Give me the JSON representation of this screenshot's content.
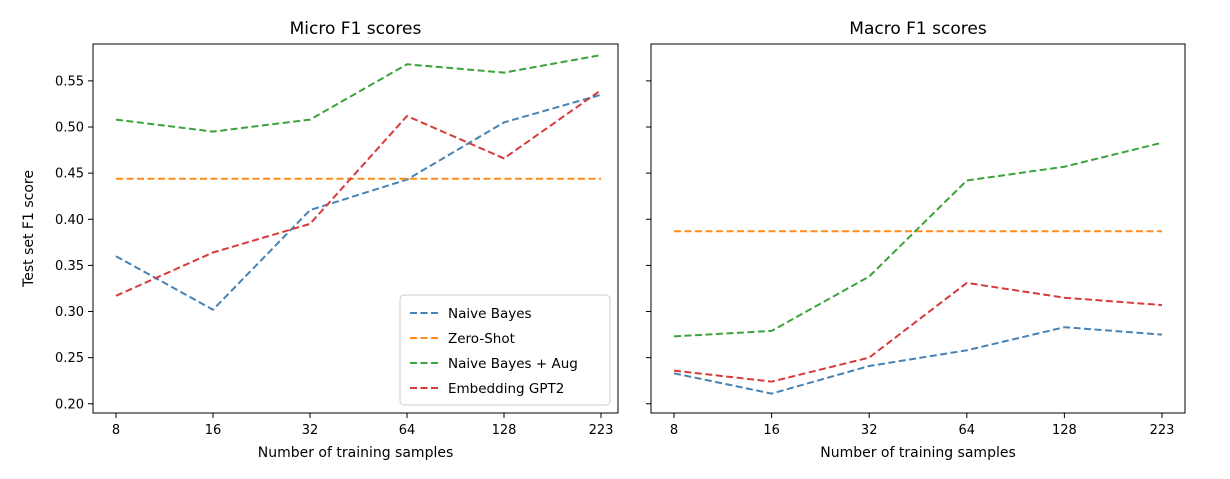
{
  "chart_data": [
    {
      "type": "line",
      "title": "Micro F1 scores",
      "xlabel": "Number of training samples",
      "ylabel": "Test set F1 score",
      "categories": [
        "8",
        "16",
        "32",
        "64",
        "128",
        "223"
      ],
      "ylim": [
        0.19,
        0.59
      ],
      "yticks": [
        "0.20",
        "0.25",
        "0.30",
        "0.35",
        "0.40",
        "0.45",
        "0.50",
        "0.55"
      ],
      "ytick_values": [
        0.2,
        0.25,
        0.3,
        0.35,
        0.4,
        0.45,
        0.5,
        0.55
      ],
      "grid": false,
      "legend": "lower-right",
      "series": [
        {
          "name": "Naive Bayes",
          "color": "#4682b4",
          "values": [
            0.36,
            0.302,
            0.41,
            0.443,
            0.505,
            0.535
          ]
        },
        {
          "name": "Zero-Shot",
          "color": "#ff8c1a",
          "values": [
            0.444,
            0.444,
            0.444,
            0.444,
            0.444,
            0.444
          ]
        },
        {
          "name": "Naive Bayes + Aug",
          "color": "#3ca23c",
          "values": [
            0.508,
            0.495,
            0.508,
            0.568,
            0.559,
            0.578
          ]
        },
        {
          "name": "Embedding GPT2",
          "color": "#d63b3b",
          "values": [
            0.317,
            0.364,
            0.395,
            0.512,
            0.466,
            0.54
          ]
        }
      ]
    },
    {
      "type": "line",
      "title": "Macro F1 scores",
      "xlabel": "Number of training samples",
      "ylabel": "",
      "categories": [
        "8",
        "16",
        "32",
        "64",
        "128",
        "223"
      ],
      "ylim": [
        0.19,
        0.59
      ],
      "yticks": [],
      "ytick_values": [
        0.2,
        0.25,
        0.3,
        0.35,
        0.4,
        0.45,
        0.5,
        0.55
      ],
      "grid": false,
      "legend": "none",
      "series": [
        {
          "color": "#4682b4",
          "values": [
            0.233,
            0.211,
            0.241,
            0.258,
            0.283,
            0.275
          ]
        },
        {
          "color": "#ff8c1a",
          "values": [
            0.387,
            0.387,
            0.387,
            0.387,
            0.387,
            0.387
          ]
        },
        {
          "color": "#3ca23c",
          "values": [
            0.273,
            0.279,
            0.338,
            0.442,
            0.457,
            0.483
          ]
        },
        {
          "color": "#d63b3b",
          "values": [
            0.236,
            0.224,
            0.25,
            0.331,
            0.315,
            0.307
          ]
        }
      ]
    }
  ]
}
